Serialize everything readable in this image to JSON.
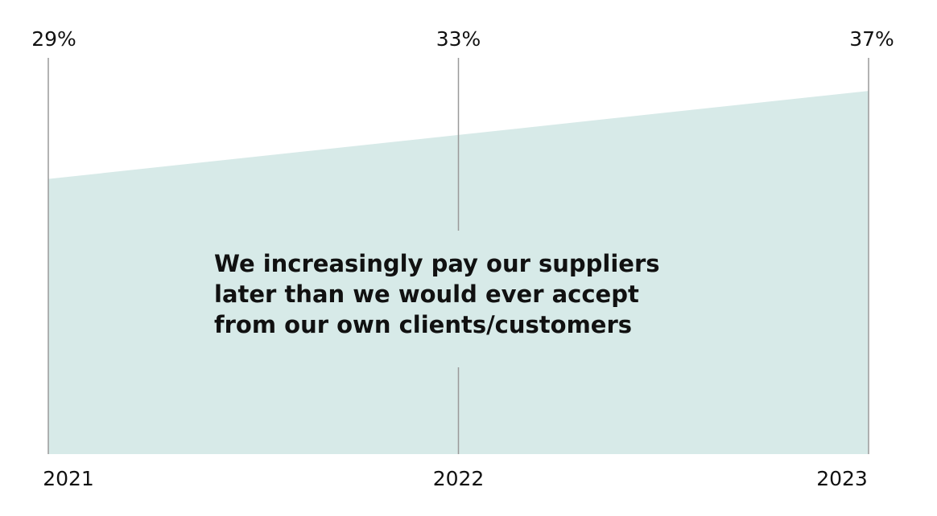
{
  "chart_data": {
    "type": "area",
    "categories": [
      "2021",
      "2022",
      "2023"
    ],
    "values": [
      29,
      33,
      37
    ],
    "value_labels": [
      "29%",
      "33%",
      "37%"
    ],
    "color": "#d7eae8",
    "ylim": [
      4,
      40
    ],
    "annotation": [
      "We increasingly pay our suppliers",
      "later than we would ever accept",
      "from our own clients/customers"
    ]
  }
}
